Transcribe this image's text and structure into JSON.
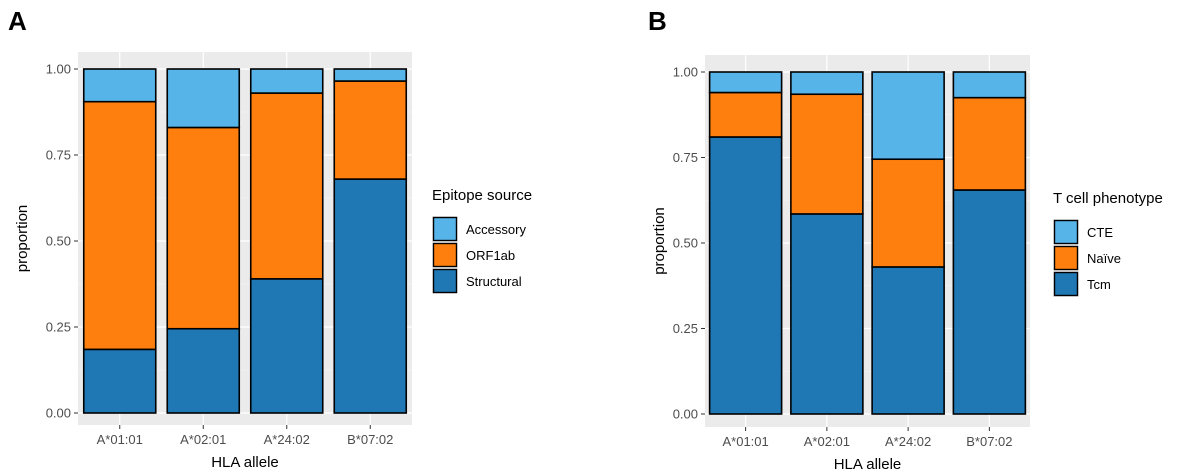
{
  "chart_data": [
    {
      "panel": "A",
      "type": "bar",
      "stacked": true,
      "categories": [
        "A*01:01",
        "A*02:01",
        "A*24:02",
        "B*07:02"
      ],
      "series": [
        {
          "name": "Structural",
          "values": [
            0.185,
            0.245,
            0.39,
            0.68
          ],
          "color": "#1f77b4"
        },
        {
          "name": "ORF1ab",
          "values": [
            0.72,
            0.585,
            0.54,
            0.285
          ],
          "color": "#ff7f0e"
        },
        {
          "name": "Accessory",
          "values": [
            0.095,
            0.17,
            0.07,
            0.035
          ],
          "color": "#56b4e9"
        }
      ],
      "legend_order": [
        "Accessory",
        "ORF1ab",
        "Structural"
      ],
      "title": "",
      "xlabel": "HLA allele",
      "ylabel": "proportion",
      "legend_title": "Epitope source",
      "legend_position": "right",
      "ylim": [
        0,
        1
      ],
      "yticks": [
        "0.00",
        "0.25",
        "0.50",
        "0.75",
        "1.00"
      ],
      "yticks_values": [
        0,
        0.25,
        0.5,
        0.75,
        1
      ],
      "grid": true,
      "panel_background": "#ebebeb"
    },
    {
      "panel": "B",
      "type": "bar",
      "stacked": true,
      "categories": [
        "A*01:01",
        "A*02:01",
        "A*24:02",
        "B*07:02"
      ],
      "series": [
        {
          "name": "Tcm",
          "values": [
            0.81,
            0.585,
            0.43,
            0.655
          ],
          "color": "#1f77b4"
        },
        {
          "name": "Naïve",
          "values": [
            0.13,
            0.35,
            0.315,
            0.27
          ],
          "color": "#ff7f0e"
        },
        {
          "name": "CTE",
          "values": [
            0.06,
            0.065,
            0.255,
            0.075
          ],
          "color": "#56b4e9"
        }
      ],
      "legend_order": [
        "CTE",
        "Naïve",
        "Tcm"
      ],
      "title": "",
      "xlabel": "HLA allele",
      "ylabel": "proportion",
      "legend_title": "T cell phenotype",
      "legend_position": "right",
      "ylim": [
        0,
        1
      ],
      "yticks": [
        "0.00",
        "0.25",
        "0.50",
        "0.75",
        "1.00"
      ],
      "yticks_values": [
        0,
        0.25,
        0.5,
        0.75,
        1
      ],
      "grid": true,
      "panel_background": "#ebebeb"
    }
  ]
}
